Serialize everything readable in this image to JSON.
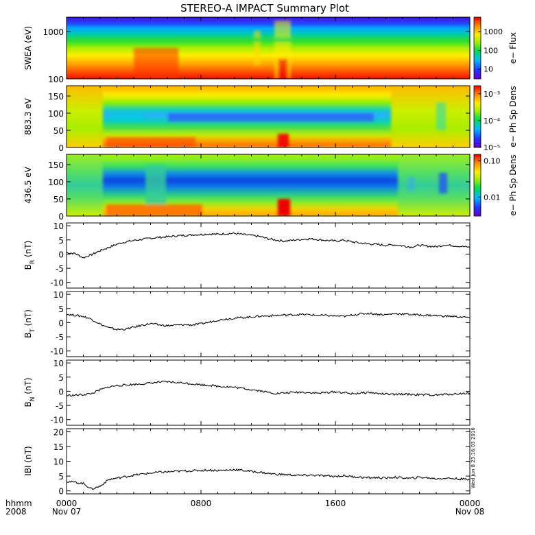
{
  "chart_data": {
    "title": "STEREO-A IMPACT Summary Plot",
    "type": "line",
    "stamp": "Wed Jun  8 23:16:03 2016",
    "time_axis": {
      "row_label_1": "hhmm",
      "row_label_2": "2008",
      "ticks": [
        {
          "hour": 0,
          "label": "0000",
          "sub": "Nov 07"
        },
        {
          "hour": 8,
          "label": "0800",
          "sub": ""
        },
        {
          "hour": 16,
          "label": "1600",
          "sub": ""
        },
        {
          "hour": 24,
          "label": "0000",
          "sub": "Nov 08"
        }
      ],
      "range_hours": [
        0,
        24
      ]
    },
    "spectrograms": [
      {
        "ylabel": "SWEA (eV)",
        "yscale": "log",
        "ylim": [
          100,
          2000
        ],
        "yticks": [
          100,
          1000
        ],
        "colorbar": {
          "label": "e− Flux",
          "scale": "log",
          "range": [
            3,
            6000
          ],
          "ticks": [
            10,
            100,
            1000
          ],
          "tick_labels": [
            "10",
            "100",
            "1000"
          ]
        }
      },
      {
        "ylabel": "883.3 eV",
        "yscale": "linear",
        "ylim": [
          0,
          180
        ],
        "yticks": [
          0,
          50,
          100,
          150
        ],
        "colorbar": {
          "label": "e− Ph Sp Dens",
          "scale": "log",
          "range": [
            1e-05,
            0.002
          ],
          "ticks": [
            1e-05,
            0.0001,
            0.001
          ],
          "tick_labels": [
            "10⁻⁵",
            "10⁻⁴",
            "10⁻³"
          ]
        }
      },
      {
        "ylabel": "436.5 eV",
        "yscale": "linear",
        "ylim": [
          0,
          180
        ],
        "yticks": [
          0,
          50,
          100,
          150
        ],
        "colorbar": {
          "label": "e− Ph Sp Dens",
          "scale": "log",
          "range": [
            0.003,
            0.15
          ],
          "ticks": [
            0.01,
            0.1
          ],
          "tick_labels": [
            "0.01",
            "0.10"
          ]
        }
      }
    ],
    "series": [
      {
        "name": "BR (nT)",
        "label_main": "B",
        "label_sub": "R",
        "label_unit": "(nT)",
        "ylim": [
          -12,
          11
        ],
        "yticks": [
          -10,
          -5,
          0,
          5,
          10
        ],
        "x": [
          0,
          0.5,
          1,
          1.5,
          2,
          2.5,
          3,
          3.5,
          4,
          4.5,
          5,
          5.5,
          6,
          6.5,
          7,
          7.5,
          8,
          8.5,
          9,
          9.5,
          10,
          10.5,
          11,
          11.5,
          12,
          12.5,
          13,
          13.5,
          14,
          14.5,
          15,
          15.5,
          16,
          16.5,
          17,
          17.5,
          18,
          18.5,
          19,
          19.5,
          20,
          20.5,
          21,
          21.5,
          22,
          22.5,
          23,
          23.5,
          24
        ],
        "values": [
          0.5,
          0.2,
          -1.3,
          -0.2,
          1.2,
          2.3,
          3.5,
          4.3,
          4.8,
          5.2,
          5.6,
          5.9,
          6.1,
          6.4,
          6.6,
          6.8,
          6.9,
          7.1,
          7.0,
          7.2,
          7.3,
          6.9,
          6.6,
          6.2,
          5.4,
          4.9,
          4.6,
          4.9,
          5.2,
          5.4,
          5.1,
          4.8,
          4.6,
          4.9,
          4.3,
          3.9,
          3.6,
          3.4,
          3.1,
          3.3,
          2.9,
          2.5,
          3.1,
          2.8,
          2.6,
          3.2,
          3.0,
          2.7,
          2.4
        ]
      },
      {
        "name": "BT (nT)",
        "label_main": "B",
        "label_sub": "T",
        "label_unit": "(nT)",
        "ylim": [
          -12,
          11
        ],
        "yticks": [
          -10,
          -5,
          0,
          5,
          10
        ],
        "x": [
          0,
          0.5,
          1,
          1.5,
          2,
          2.5,
          3,
          3.5,
          4,
          4.5,
          5,
          5.5,
          6,
          6.5,
          7,
          7.5,
          8,
          8.5,
          9,
          9.5,
          10,
          10.5,
          11,
          11.5,
          12,
          12.5,
          13,
          13.5,
          14,
          14.5,
          15,
          15.5,
          16,
          16.5,
          17,
          17.5,
          18,
          18.5,
          19,
          19.5,
          20,
          20.5,
          21,
          21.5,
          22,
          22.5,
          23,
          23.5,
          24
        ],
        "values": [
          3.0,
          2.6,
          2.2,
          1.2,
          -0.5,
          -1.8,
          -2.4,
          -2.3,
          -1.6,
          -0.9,
          -0.3,
          -0.8,
          -1.1,
          -0.9,
          -0.7,
          -0.8,
          -0.4,
          0.2,
          0.9,
          1.3,
          1.6,
          1.8,
          2.0,
          2.3,
          2.4,
          2.6,
          2.7,
          2.8,
          2.9,
          2.8,
          2.6,
          2.5,
          2.4,
          2.2,
          2.7,
          3.1,
          3.3,
          3.0,
          2.8,
          3.2,
          3.1,
          2.9,
          2.7,
          2.6,
          2.5,
          2.3,
          2.2,
          2.0,
          1.8
        ]
      },
      {
        "name": "BN (nT)",
        "label_main": "B",
        "label_sub": "N",
        "label_unit": "(nT)",
        "ylim": [
          -12,
          11
        ],
        "yticks": [
          -10,
          -5,
          0,
          5,
          10
        ],
        "x": [
          0,
          0.5,
          1,
          1.5,
          2,
          2.5,
          3,
          3.5,
          4,
          4.5,
          5,
          5.5,
          6,
          6.5,
          7,
          7.5,
          8,
          8.5,
          9,
          9.5,
          10,
          10.5,
          11,
          11.5,
          12,
          12.5,
          13,
          13.5,
          14,
          14.5,
          15,
          15.5,
          16,
          16.5,
          17,
          17.5,
          18,
          18.5,
          19,
          19.5,
          20,
          20.5,
          21,
          21.5,
          22,
          22.5,
          23,
          23.5,
          24
        ],
        "values": [
          -1.5,
          -1.4,
          -1.2,
          -0.8,
          0.5,
          1.5,
          2.0,
          2.2,
          2.4,
          2.6,
          2.9,
          3.2,
          3.3,
          3.1,
          2.9,
          2.6,
          2.3,
          2.1,
          1.8,
          1.6,
          1.4,
          1.0,
          0.6,
          0.2,
          -0.4,
          -0.8,
          -0.6,
          -0.4,
          -0.3,
          -0.5,
          -0.7,
          -0.4,
          -0.2,
          -0.5,
          -0.9,
          -0.6,
          -0.4,
          -0.8,
          -1.0,
          -1.2,
          -1.0,
          -1.1,
          -1.3,
          -1.2,
          -1.4,
          -1.1,
          -1.0,
          -0.8,
          -0.7
        ]
      },
      {
        "name": "|B| (nT)",
        "label_main": "IBI",
        "label_sub": "",
        "label_unit": "(nT)",
        "ylim": [
          -1,
          21
        ],
        "yticks": [
          0,
          5,
          10,
          15,
          20
        ],
        "x": [
          0,
          0.5,
          1,
          1.5,
          2,
          2.5,
          3,
          3.5,
          4,
          4.5,
          5,
          5.5,
          6,
          6.5,
          7,
          7.5,
          8,
          8.5,
          9,
          9.5,
          10,
          10.5,
          11,
          11.5,
          12,
          12.5,
          13,
          13.5,
          14,
          14.5,
          15,
          15.5,
          16,
          16.5,
          17,
          17.5,
          18,
          18.5,
          19,
          19.5,
          20,
          20.5,
          21,
          21.5,
          22,
          22.5,
          23,
          23.5,
          24
        ],
        "values": [
          3.2,
          2.9,
          2.5,
          0.6,
          1.6,
          3.8,
          4.3,
          4.8,
          5.3,
          5.7,
          6.0,
          6.3,
          6.4,
          6.6,
          6.7,
          6.8,
          6.9,
          7.0,
          6.9,
          7.0,
          7.2,
          6.9,
          6.6,
          6.3,
          5.9,
          5.6,
          5.5,
          5.3,
          5.2,
          5.3,
          5.2,
          5.0,
          4.9,
          5.1,
          4.8,
          4.6,
          4.4,
          4.5,
          4.3,
          4.6,
          4.4,
          4.2,
          4.6,
          4.4,
          4.1,
          4.3,
          4.2,
          4.0,
          3.8
        ]
      }
    ],
    "line_color": "#000000",
    "colormap": [
      "#6600cc",
      "#2233ff",
      "#00bbff",
      "#00dd55",
      "#aaee00",
      "#ffee00",
      "#ff8800",
      "#ee0000"
    ]
  }
}
